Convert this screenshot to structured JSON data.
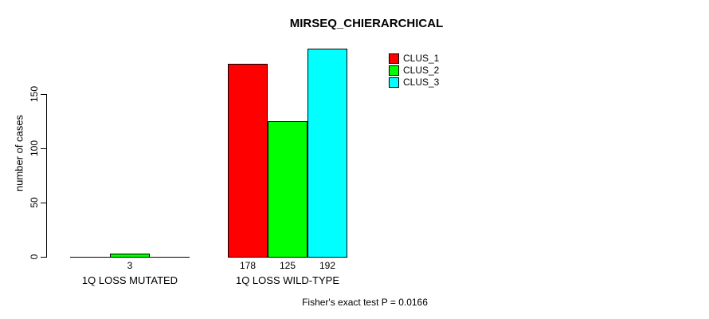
{
  "title": "MIRSEQ_CHIERARCHICAL",
  "footer_note": "Fisher's exact test P = 0.0166",
  "y_axis": {
    "label": "number of cases",
    "tick_labels": [
      "0",
      "50",
      "100",
      "150"
    ]
  },
  "x_axis": {
    "group_labels": [
      "1Q LOSS MUTATED",
      "1Q LOSS WILD-TYPE"
    ]
  },
  "legend": {
    "items": [
      {
        "label": "CLUS_1",
        "color": "#FF0000"
      },
      {
        "label": "CLUS_2",
        "color": "#00FF00"
      },
      {
        "label": "CLUS_3",
        "color": "#00FFFF"
      }
    ]
  },
  "chart_data": {
    "type": "bar",
    "title": "MIRSEQ_CHIERARCHICAL",
    "xlabel": "",
    "ylabel": "number of cases",
    "ylim": [
      0,
      195
    ],
    "y_ticks": [
      0,
      50,
      100,
      150
    ],
    "grid": false,
    "legend_position": "top-right",
    "categories": [
      "1Q LOSS MUTATED",
      "1Q LOSS WILD-TYPE"
    ],
    "series": [
      {
        "name": "CLUS_1",
        "color": "#FF0000",
        "values": [
          0,
          178
        ]
      },
      {
        "name": "CLUS_2",
        "color": "#00FF00",
        "values": [
          3,
          125
        ]
      },
      {
        "name": "CLUS_3",
        "color": "#00FFFF",
        "values": [
          0,
          192
        ]
      }
    ],
    "bar_value_labels": [
      [
        "",
        "3",
        ""
      ],
      [
        "178",
        "125",
        "192"
      ]
    ],
    "annotation": "Fisher's exact test P = 0.0166"
  }
}
